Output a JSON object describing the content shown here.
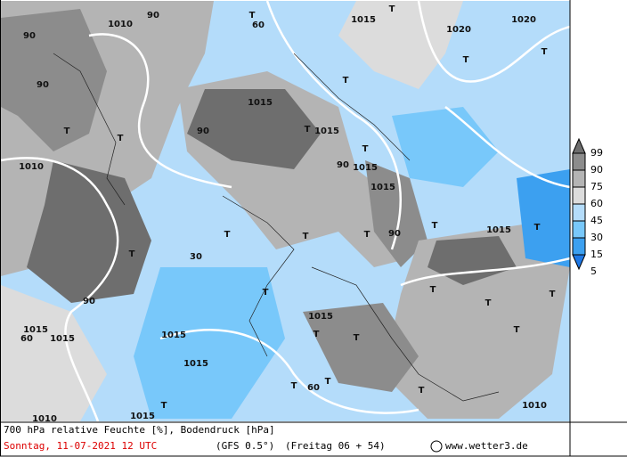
{
  "map": {
    "labels": [
      "1010",
      "90",
      "T",
      "1015",
      "T",
      "1020",
      "1020",
      "T",
      "T",
      "90",
      "90",
      "T",
      "1015",
      "T",
      "1015",
      "T",
      "90",
      "1010",
      "T",
      "90",
      "1015",
      "T",
      "1015",
      "T",
      "T",
      "T",
      "T",
      "90",
      "1015",
      "T",
      "30",
      "90",
      "T",
      "T",
      "T",
      "1015",
      "1015",
      "1015",
      "1015",
      "1015",
      "T",
      "T",
      "T",
      "T",
      "T",
      "60",
      "T",
      "1010",
      "1015",
      "1010",
      "60",
      "T",
      "T",
      "T",
      "60"
    ]
  },
  "legend": {
    "ticks": [
      99,
      90,
      75,
      60,
      45,
      30,
      15,
      5
    ],
    "colors": [
      "#6e6e6e",
      "#8c8c8c",
      "#b4b4b4",
      "#dcdcdc",
      "#b4dcfa",
      "#78c8fa",
      "#3ca0f0",
      "#1e78e6"
    ]
  },
  "footer": {
    "title": "700 hPa relative Feuchte [%], Bodendruck [hPa]",
    "date": "Sonntag, 11-07-2021  12 UTC",
    "model": "(GFS 0.5°)",
    "run": "(Freitag 06 + 54)",
    "credit": "www.wetter3.de"
  }
}
